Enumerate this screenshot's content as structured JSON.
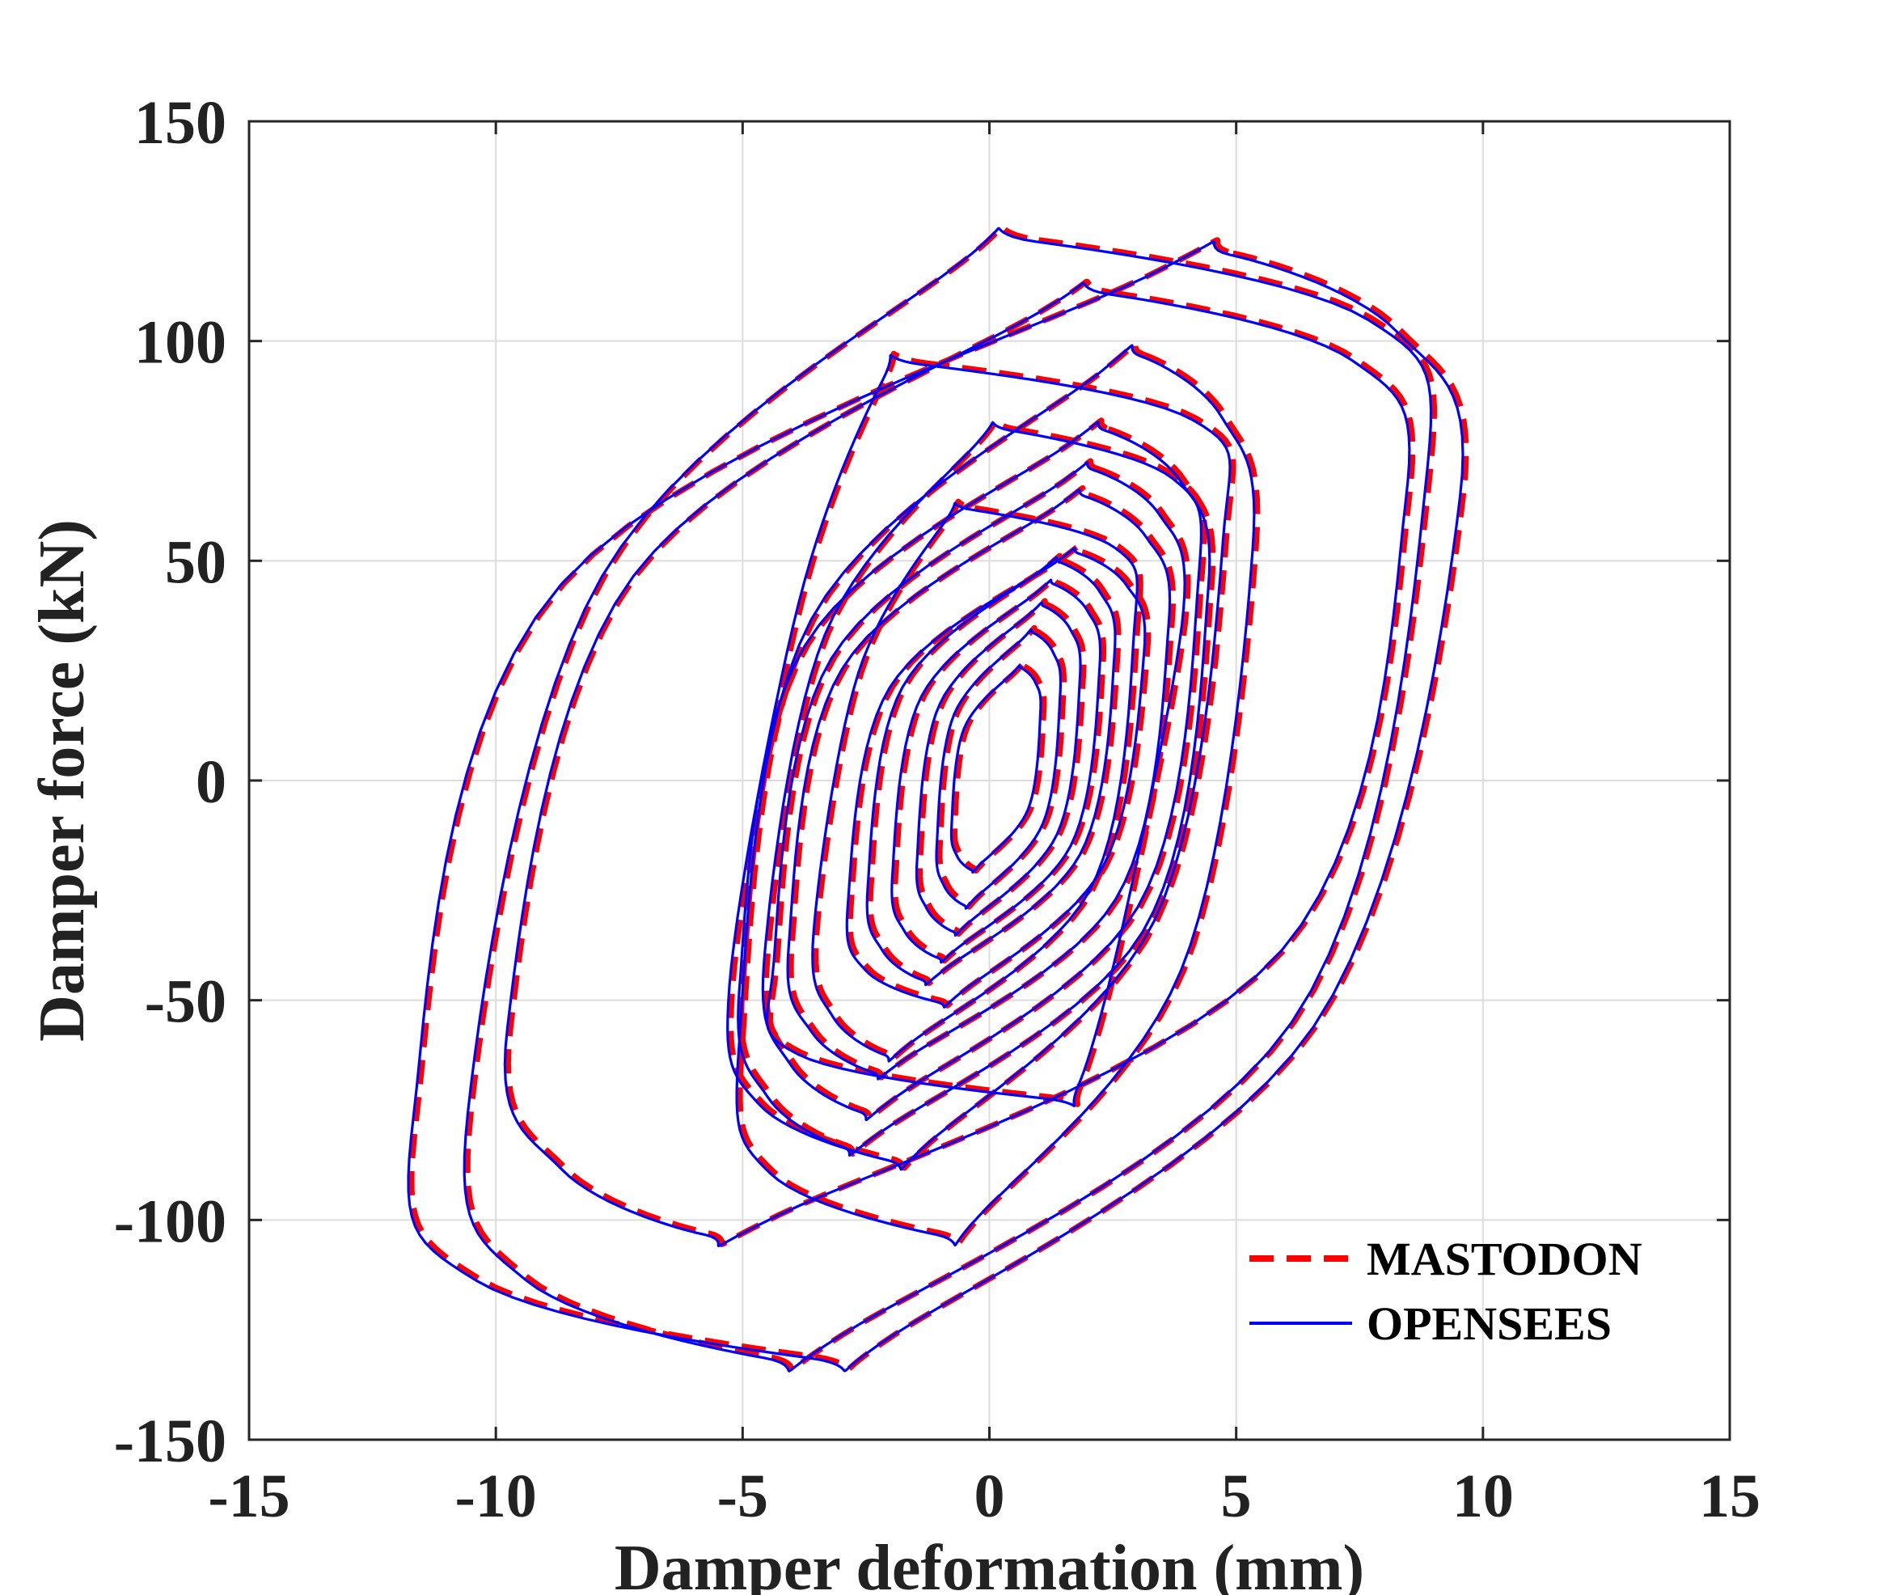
{
  "chart_data": {
    "type": "line",
    "xlabel": "Damper deformation (mm)",
    "ylabel": "Damper force (kN)",
    "xlim": [
      -15,
      15
    ],
    "ylim": [
      -150,
      150
    ],
    "xticks": [
      -15,
      -10,
      -5,
      0,
      5,
      10,
      15
    ],
    "yticks": [
      -150,
      -100,
      -50,
      0,
      50,
      100,
      150
    ],
    "xtick_labels": [
      "-15",
      "-10",
      "-5",
      "0",
      "5",
      "10",
      "15"
    ],
    "ytick_labels": [
      "-150",
      "-100",
      "-50",
      "0",
      "50",
      "100",
      "150"
    ],
    "grid": true,
    "legend_position": "bottom-right",
    "series": [
      {
        "name": "MASTODON",
        "color": "#ff0000",
        "style": "dashed",
        "loops": [
          {
            "xmin": -11.6,
            "xmax": 9.6,
            "ymin": -131,
            "ymax": 120,
            "xtop": 6.2,
            "xbot": -3.6
          },
          {
            "xmin": -10.5,
            "xmax": 8.9,
            "ymin": -131,
            "ymax": 123,
            "xtop": 1.0,
            "xbot": -4.5
          },
          {
            "xmin": -9.7,
            "xmax": 8.5,
            "ymin": -103,
            "ymax": 111,
            "xtop": 2.5,
            "xbot": -6.5
          },
          {
            "xmin": -5.0,
            "xmax": 5.4,
            "ymin": -103,
            "ymax": 97,
            "xtop": 4.0,
            "xbot": -1.0
          },
          {
            "xmin": -5.2,
            "xmax": 4.8,
            "ymin": -86,
            "ymax": 95,
            "xtop": -1.3,
            "xbot": -2.0
          },
          {
            "xmin": -5.0,
            "xmax": 4.5,
            "ymin": -83,
            "ymax": 80,
            "xtop": 3.3,
            "xbot": -3.0
          },
          {
            "xmin": -4.5,
            "xmax": 4.3,
            "ymin": -75,
            "ymax": 80,
            "xtop": 0.5,
            "xbot": -3.2
          },
          {
            "xmin": -4.3,
            "xmax": 4.0,
            "ymin": -72,
            "ymax": 71,
            "xtop": 3.8,
            "xbot": 1.2
          },
          {
            "xmin": -4.0,
            "xmax": 3.7,
            "ymin": -66,
            "ymax": 65,
            "xtop": 2.8,
            "xbot": -3.6
          },
          {
            "xmin": -3.5,
            "xmax": 3.0,
            "ymin": -62,
            "ymax": 62,
            "xtop": -0.3,
            "xbot": -3.3
          },
          {
            "xmin": -2.8,
            "xmax": 3.2,
            "ymin": -50,
            "ymax": 52,
            "xtop": 2.6,
            "xbot": -1.0
          },
          {
            "xmin": -2.4,
            "xmax": 2.6,
            "ymin": -45,
            "ymax": 50,
            "xtop": 1.8,
            "xbot": -1.6
          },
          {
            "xmin": -1.9,
            "xmax": 2.3,
            "ymin": -40,
            "ymax": 45,
            "xtop": 1.6,
            "xbot": -1.2
          },
          {
            "xmin": -1.4,
            "xmax": 1.9,
            "ymin": -34,
            "ymax": 40,
            "xtop": 1.3,
            "xbot": -0.8
          },
          {
            "xmin": -1.0,
            "xmax": 1.5,
            "ymin": -28,
            "ymax": 34,
            "xtop": 1.1,
            "xbot": -0.5
          },
          {
            "xmin": -0.7,
            "xmax": 1.1,
            "ymin": -20,
            "ymax": 26,
            "xtop": 0.8,
            "xbot": -0.3
          }
        ]
      },
      {
        "name": "OPENSEES",
        "color": "#0000ff",
        "style": "solid"
      }
    ]
  }
}
